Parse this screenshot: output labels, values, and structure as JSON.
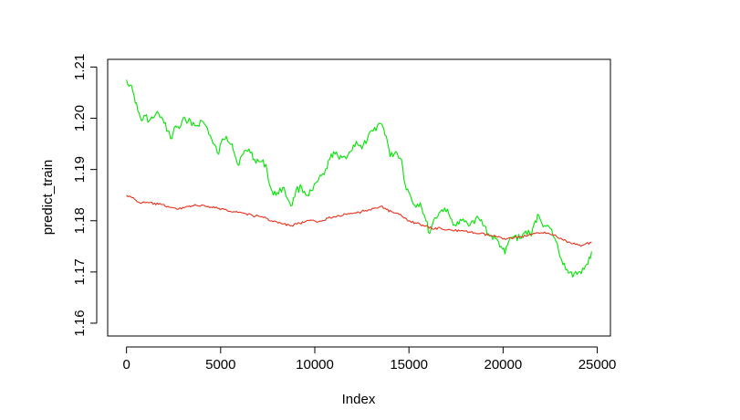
{
  "chart_data": {
    "type": "line",
    "title": "",
    "xlabel": "Index",
    "ylabel": "predict_train",
    "xlim": [
      -1000,
      25700
    ],
    "ylim": [
      1.1575,
      1.2115
    ],
    "grid": false,
    "legend": "none",
    "x_ticks": [
      0,
      5000,
      10000,
      15000,
      20000,
      25000
    ],
    "x_tick_labels": [
      "0",
      "5000",
      "10000",
      "15000",
      "20000",
      "25000"
    ],
    "y_ticks": [
      1.16,
      1.17,
      1.18,
      1.19,
      1.2,
      1.21
    ],
    "y_tick_labels": [
      "1.16",
      "1.17",
      "1.18",
      "1.19",
      "1.20",
      "1.21"
    ],
    "series": [
      {
        "color": "#00e600",
        "x": [
          0,
          200,
          400,
          600,
          800,
          1000,
          1200,
          1400,
          1700,
          2000,
          2200,
          2400,
          2600,
          2800,
          3000,
          3200,
          3400,
          3700,
          4000,
          4300,
          4600,
          4900,
          5100,
          5300,
          5600,
          5900,
          6200,
          6500,
          6800,
          7100,
          7400,
          7600,
          7800,
          8000,
          8300,
          8600,
          8800,
          9000,
          9300,
          9600,
          9900,
          10200,
          10500,
          10800,
          11000,
          11300,
          11600,
          11900,
          12200,
          12500,
          12800,
          13100,
          13400,
          13600,
          13800,
          14000,
          14300,
          14600,
          14800,
          15000,
          15300,
          15600,
          15900,
          16100,
          16300,
          16600,
          16900,
          17200,
          17500,
          17800,
          18100,
          18400,
          18700,
          19000,
          19300,
          19600,
          19900,
          20100,
          20300,
          20600,
          20900,
          21200,
          21500,
          21700,
          21900,
          22200,
          22500,
          22800,
          23100,
          23400,
          23700,
          24000,
          24300,
          24500,
          24700
        ],
        "values": [
          1.2075,
          1.2065,
          1.2045,
          1.2015,
          1.1995,
          1.2005,
          1.1995,
          1.2,
          1.201,
          1.199,
          1.1975,
          1.196,
          1.1985,
          1.198,
          1.2,
          1.199,
          1.1995,
          1.1985,
          1.1995,
          1.198,
          1.195,
          1.193,
          1.196,
          1.1965,
          1.195,
          1.191,
          1.193,
          1.194,
          1.192,
          1.1915,
          1.191,
          1.187,
          1.185,
          1.1855,
          1.1865,
          1.184,
          1.183,
          1.186,
          1.1865,
          1.185,
          1.186,
          1.188,
          1.189,
          1.192,
          1.1935,
          1.192,
          1.1925,
          1.1935,
          1.1955,
          1.194,
          1.196,
          1.1975,
          1.199,
          1.1985,
          1.1965,
          1.1925,
          1.1935,
          1.192,
          1.187,
          1.1855,
          1.183,
          1.1835,
          1.18,
          1.1775,
          1.18,
          1.1815,
          1.1825,
          1.1805,
          1.179,
          1.18,
          1.1795,
          1.18,
          1.1805,
          1.179,
          1.177,
          1.1765,
          1.175,
          1.1735,
          1.176,
          1.177,
          1.1765,
          1.178,
          1.177,
          1.18,
          1.181,
          1.179,
          1.1785,
          1.176,
          1.1725,
          1.1705,
          1.169,
          1.17,
          1.1705,
          1.1715,
          1.174
        ]
      },
      {
        "color": "#e8321e",
        "x": [
          0,
          300,
          700,
          1200,
          1700,
          2200,
          2700,
          3200,
          3700,
          4200,
          4700,
          5200,
          5700,
          6200,
          6700,
          7200,
          7700,
          8200,
          8700,
          9200,
          9700,
          10200,
          10700,
          11200,
          11700,
          12200,
          12700,
          13200,
          13500,
          13800,
          14200,
          14600,
          15000,
          15400,
          15800,
          16200,
          16700,
          17200,
          17700,
          18200,
          18700,
          19200,
          19700,
          20200,
          20700,
          21200,
          21700,
          22200,
          22700,
          23200,
          23700,
          24200,
          24700
        ],
        "values": [
          1.185,
          1.1845,
          1.1835,
          1.1835,
          1.1832,
          1.1828,
          1.1822,
          1.1828,
          1.183,
          1.1828,
          1.1825,
          1.1822,
          1.1818,
          1.1815,
          1.181,
          1.1808,
          1.18,
          1.1795,
          1.179,
          1.1795,
          1.18,
          1.1798,
          1.1805,
          1.181,
          1.1812,
          1.1815,
          1.182,
          1.1825,
          1.1828,
          1.1822,
          1.1815,
          1.181,
          1.18,
          1.1795,
          1.179,
          1.1785,
          1.1785,
          1.1782,
          1.178,
          1.1778,
          1.1775,
          1.1772,
          1.1768,
          1.1765,
          1.1768,
          1.177,
          1.1775,
          1.1778,
          1.1772,
          1.1762,
          1.1755,
          1.1752,
          1.1758
        ]
      }
    ]
  }
}
